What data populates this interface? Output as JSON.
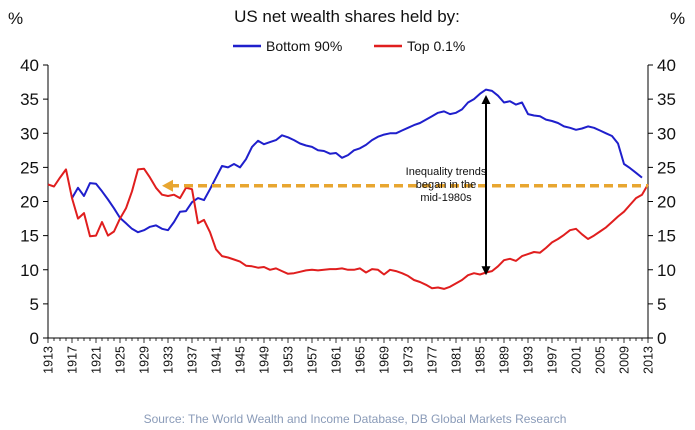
{
  "chart_data": {
    "type": "line",
    "title": "US net wealth shares held by:",
    "ylabel_left": "%",
    "ylabel_right": "%",
    "ylim": [
      0,
      40
    ],
    "yticks": [
      0,
      5,
      10,
      15,
      20,
      25,
      30,
      35,
      40
    ],
    "xlim": [
      1913,
      2013
    ],
    "xticks": [
      1913,
      1917,
      1921,
      1925,
      1929,
      1933,
      1937,
      1941,
      1945,
      1949,
      1953,
      1957,
      1961,
      1965,
      1969,
      1973,
      1977,
      1981,
      1985,
      1989,
      1993,
      1997,
      2001,
      2005,
      2009,
      2013
    ],
    "legend_position": "top-center",
    "grid": false,
    "series": [
      {
        "name": "Bottom 90%",
        "color": "#1f1fcc",
        "x": [
          1917,
          1918,
          1919,
          1920,
          1921,
          1922,
          1923,
          1924,
          1925,
          1926,
          1927,
          1928,
          1929,
          1930,
          1931,
          1932,
          1933,
          1934,
          1935,
          1936,
          1937,
          1938,
          1939,
          1940,
          1941,
          1942,
          1943,
          1944,
          1945,
          1946,
          1947,
          1948,
          1949,
          1950,
          1951,
          1952,
          1953,
          1954,
          1955,
          1956,
          1957,
          1958,
          1959,
          1960,
          1961,
          1962,
          1963,
          1964,
          1965,
          1966,
          1967,
          1968,
          1969,
          1970,
          1971,
          1972,
          1973,
          1974,
          1975,
          1976,
          1977,
          1978,
          1979,
          1980,
          1981,
          1982,
          1983,
          1984,
          1985,
          1986,
          1987,
          1988,
          1989,
          1990,
          1991,
          1992,
          1993,
          1994,
          1995,
          1996,
          1997,
          1998,
          1999,
          2000,
          2001,
          2002,
          2003,
          2004,
          2005,
          2006,
          2007,
          2008,
          2009,
          2010,
          2011,
          2012
        ],
        "values": [
          20.5,
          22.0,
          20.8,
          22.7,
          22.6,
          21.5,
          20.3,
          19.0,
          17.6,
          16.8,
          16.0,
          15.5,
          15.8,
          16.3,
          16.5,
          16.0,
          15.8,
          17.0,
          18.5,
          18.6,
          19.9,
          20.5,
          20.2,
          21.8,
          23.5,
          25.2,
          25.0,
          25.5,
          25.0,
          26.2,
          28.0,
          28.9,
          28.4,
          28.7,
          29.0,
          29.7,
          29.4,
          29.0,
          28.5,
          28.2,
          28.0,
          27.5,
          27.4,
          27.0,
          27.1,
          26.4,
          26.8,
          27.5,
          27.8,
          28.3,
          29.0,
          29.5,
          29.8,
          30.0,
          30.0,
          30.4,
          30.8,
          31.2,
          31.5,
          32.0,
          32.5,
          33.0,
          33.2,
          32.8,
          33.0,
          33.5,
          34.5,
          35.0,
          35.8,
          36.4,
          36.2,
          35.5,
          34.5,
          34.7,
          34.2,
          34.5,
          32.8,
          32.6,
          32.5,
          32.0,
          31.8,
          31.5,
          31.0,
          30.8,
          30.5,
          30.7,
          31.0,
          30.8,
          30.4,
          30.0,
          29.6,
          28.5,
          25.5,
          24.9,
          24.2,
          23.5
        ]
      },
      {
        "name": "Top 0.1%",
        "color": "#e01e1e",
        "x": [
          1913,
          1914,
          1915,
          1916,
          1917,
          1918,
          1919,
          1920,
          1921,
          1922,
          1923,
          1924,
          1925,
          1926,
          1927,
          1928,
          1929,
          1930,
          1931,
          1932,
          1933,
          1934,
          1935,
          1936,
          1937,
          1938,
          1939,
          1940,
          1941,
          1942,
          1943,
          1944,
          1945,
          1946,
          1947,
          1948,
          1949,
          1950,
          1951,
          1952,
          1953,
          1954,
          1955,
          1956,
          1957,
          1958,
          1959,
          1960,
          1961,
          1962,
          1963,
          1964,
          1965,
          1966,
          1967,
          1968,
          1969,
          1970,
          1971,
          1972,
          1973,
          1974,
          1975,
          1976,
          1977,
          1978,
          1979,
          1980,
          1981,
          1982,
          1983,
          1984,
          1985,
          1986,
          1987,
          1988,
          1989,
          1990,
          1991,
          1992,
          1993,
          1994,
          1995,
          1996,
          1997,
          1998,
          1999,
          2000,
          2001,
          2002,
          2003,
          2004,
          2005,
          2006,
          2007,
          2008,
          2009,
          2010,
          2011,
          2012,
          2013
        ],
        "values": [
          22.5,
          22.2,
          23.5,
          24.7,
          20.5,
          17.5,
          18.3,
          14.9,
          15.0,
          17.0,
          15.0,
          15.6,
          17.5,
          19.0,
          21.5,
          24.7,
          24.8,
          23.5,
          22.0,
          21.0,
          20.8,
          21.0,
          20.5,
          22.0,
          21.8,
          16.8,
          17.3,
          15.5,
          13.0,
          12.0,
          11.8,
          11.5,
          11.2,
          10.6,
          10.5,
          10.3,
          10.4,
          10.0,
          10.2,
          9.8,
          9.4,
          9.5,
          9.7,
          9.9,
          10.0,
          9.9,
          10.0,
          10.1,
          10.1,
          10.2,
          10.0,
          10.0,
          10.2,
          9.6,
          10.1,
          10.0,
          9.3,
          10.0,
          9.8,
          9.5,
          9.1,
          8.5,
          8.2,
          7.8,
          7.3,
          7.4,
          7.2,
          7.5,
          8.0,
          8.5,
          9.2,
          9.5,
          9.3,
          9.6,
          9.8,
          10.5,
          11.4,
          11.6,
          11.3,
          12.0,
          12.3,
          12.6,
          12.5,
          13.2,
          14.0,
          14.5,
          15.1,
          15.8,
          16.0,
          15.2,
          14.5,
          15.0,
          15.6,
          16.2,
          17.0,
          17.8,
          18.5,
          19.5,
          20.5,
          21.0,
          22.5
        ]
      }
    ],
    "reference_line": {
      "y": 22.3,
      "color": "#e8a630",
      "style": "dashed",
      "x_start": 1932,
      "x_end": 2013
    },
    "double_arrow": {
      "x": 1986,
      "y_top": 35.6,
      "y_bottom": 9.2,
      "color": "#000000"
    },
    "annotation": {
      "lines": [
        "Inequality trends",
        "began in the",
        "mid-1980s"
      ],
      "x": 1987,
      "y": 23.0
    },
    "source": "Source: The World Wealth and Income Database, DB Global Markets Research"
  }
}
